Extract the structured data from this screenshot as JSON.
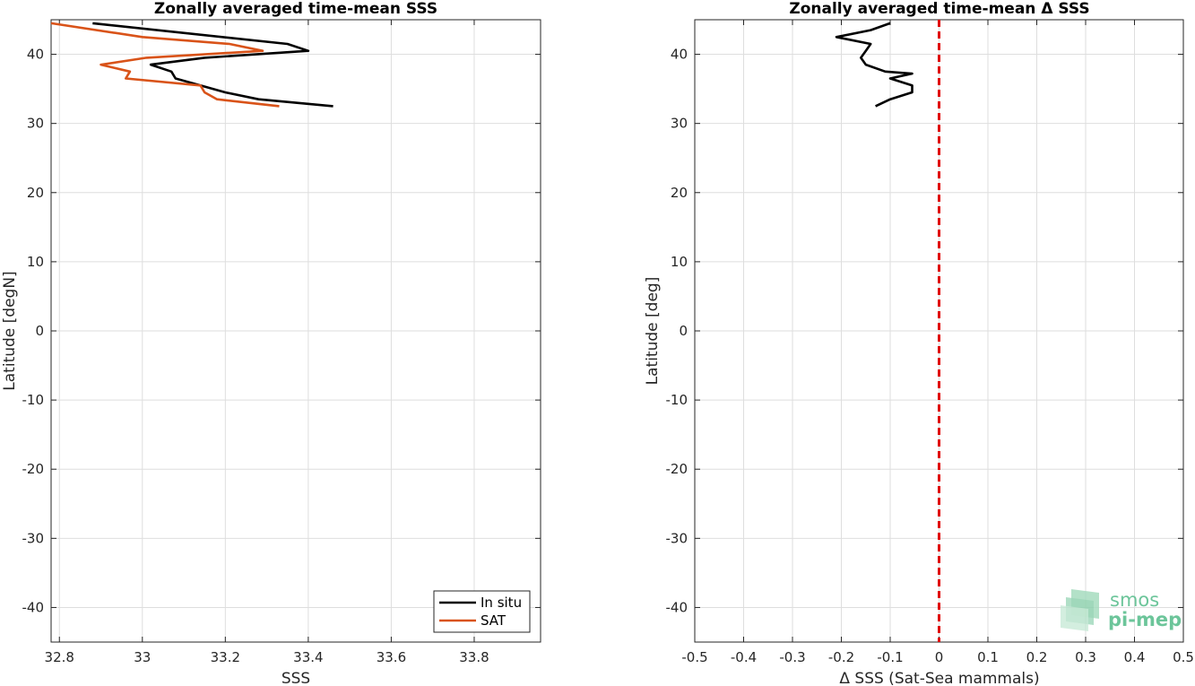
{
  "chart_data": [
    {
      "type": "line",
      "title": "Zonally averaged time-mean SSS",
      "xlabel": "SSS",
      "ylabel": "Latitude [degN]",
      "xlim": [
        32.78,
        33.96
      ],
      "ylim": [
        -45,
        45
      ],
      "xticks": [
        32.8,
        33.0,
        33.2,
        33.4,
        33.6,
        33.8
      ],
      "xtick_labels": [
        "32.8",
        "33",
        "33.2",
        "33.4",
        "33.6",
        "33.8"
      ],
      "yticks": [
        -40,
        -30,
        -20,
        -10,
        0,
        10,
        20,
        30,
        40
      ],
      "ytick_labels": [
        "-40",
        "-30",
        "-20",
        "-10",
        "0",
        "10",
        "20",
        "30",
        "40"
      ],
      "grid": true,
      "legend": "bottom-right",
      "series": [
        {
          "name": "In situ",
          "color": "#000000",
          "points": [
            [
              32.88,
              44.5
            ],
            [
              33.35,
              41.5
            ],
            [
              33.4,
              40.5
            ],
            [
              33.15,
              39.5
            ],
            [
              33.02,
              38.5
            ],
            [
              33.07,
              37.5
            ],
            [
              33.08,
              36.5
            ],
            [
              33.14,
              35.5
            ],
            [
              33.2,
              34.5
            ],
            [
              33.28,
              33.5
            ],
            [
              33.46,
              32.5
            ]
          ]
        },
        {
          "name": "SAT",
          "color": "#d95319",
          "points": [
            [
              32.78,
              44.5
            ],
            [
              33.0,
              42.5
            ],
            [
              33.21,
              41.5
            ],
            [
              33.29,
              40.5
            ],
            [
              33.01,
              39.5
            ],
            [
              32.9,
              38.5
            ],
            [
              32.97,
              37.5
            ],
            [
              32.96,
              36.5
            ],
            [
              33.14,
              35.5
            ],
            [
              33.15,
              34.5
            ],
            [
              33.18,
              33.5
            ],
            [
              33.33,
              32.5
            ]
          ]
        }
      ]
    },
    {
      "type": "line",
      "title": "Zonally averaged time-mean Δ SSS",
      "xlabel": "Δ SSS (Sat-Sea mammals)",
      "ylabel": "Latitude [deg]",
      "xlim": [
        -0.5,
        0.5
      ],
      "ylim": [
        -45,
        45
      ],
      "xticks": [
        -0.5,
        -0.4,
        -0.3,
        -0.2,
        -0.1,
        0,
        0.1,
        0.2,
        0.3,
        0.4,
        0.5
      ],
      "xtick_labels": [
        "-0.5",
        "-0.4",
        "-0.3",
        "-0.2",
        "-0.1",
        "0",
        "0.1",
        "0.2",
        "0.3",
        "0.4",
        "0.5"
      ],
      "yticks": [
        -40,
        -30,
        -20,
        -10,
        0,
        10,
        20,
        30,
        40
      ],
      "ytick_labels": [
        "-40",
        "-30",
        "-20",
        "-10",
        "0",
        "10",
        "20",
        "30",
        "40"
      ],
      "grid": true,
      "reference_line": {
        "x": 0,
        "color": "#e00000",
        "style": "dashed"
      },
      "series": [
        {
          "color": "#000000",
          "points": [
            [
              -0.1,
              44.5
            ],
            [
              -0.14,
              43.5
            ],
            [
              -0.21,
              42.5
            ],
            [
              -0.14,
              41.5
            ],
            [
              -0.15,
              40.5
            ],
            [
              -0.16,
              39.5
            ],
            [
              -0.15,
              38.5
            ],
            [
              -0.11,
              37.5
            ],
            [
              -0.055,
              37.2
            ],
            [
              -0.1,
              36.5
            ],
            [
              -0.055,
              35.5
            ],
            [
              -0.055,
              34.5
            ],
            [
              -0.1,
              33.5
            ],
            [
              -0.13,
              32.5
            ]
          ]
        }
      ]
    }
  ],
  "logo": {
    "line1": "smos",
    "line2": "pi-mep",
    "color": "#6cc59a"
  }
}
